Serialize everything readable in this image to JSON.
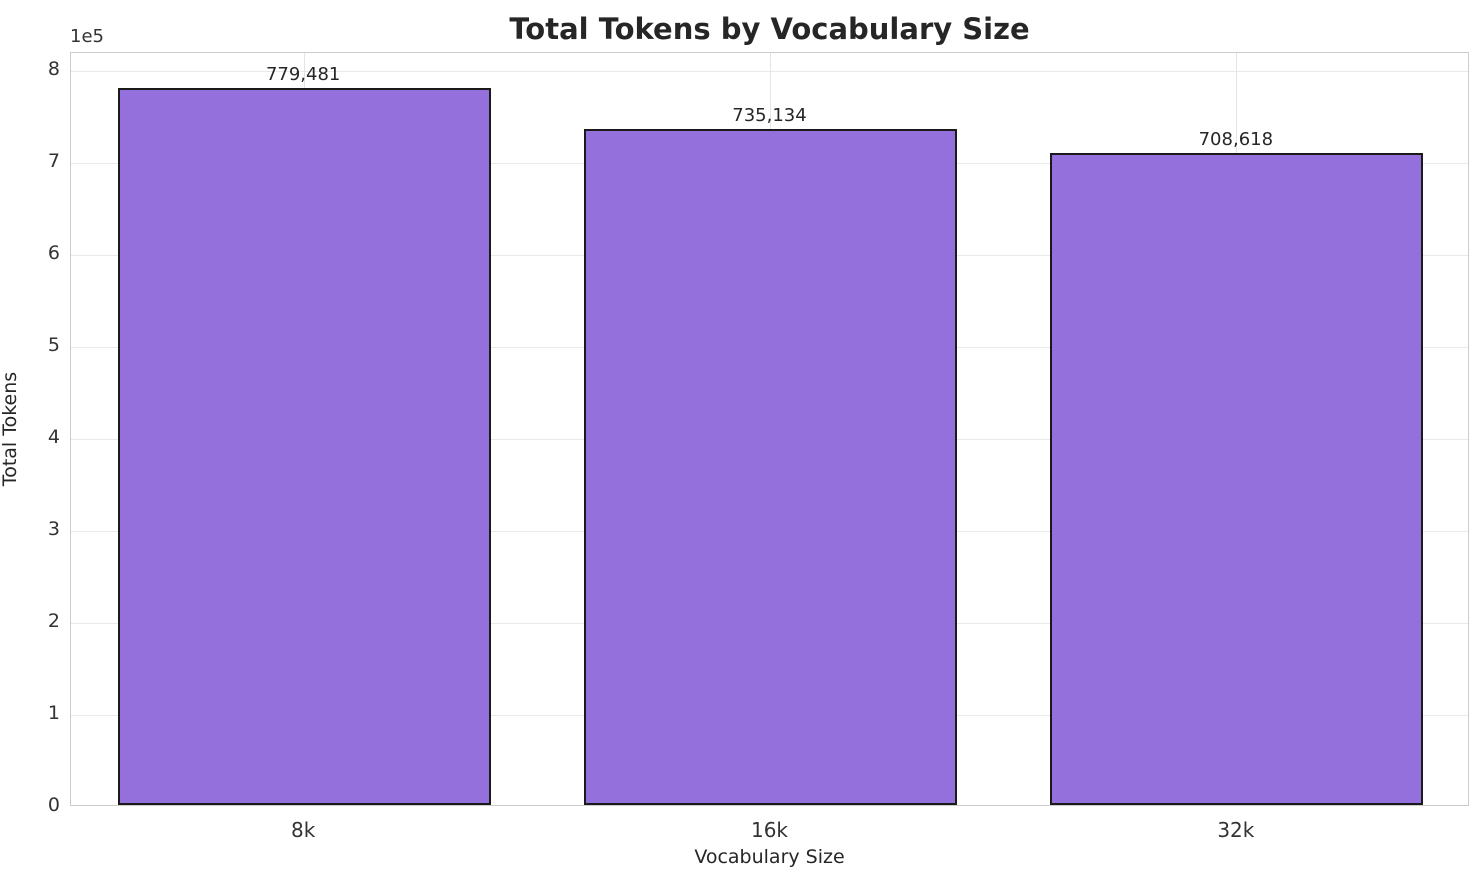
{
  "chart_data": {
    "type": "bar",
    "title": "Total Tokens by Vocabulary Size",
    "xlabel": "Vocabulary Size",
    "ylabel": "Total Tokens",
    "categories": [
      "8k",
      "16k",
      "32k"
    ],
    "values": [
      779481,
      735134,
      708618
    ],
    "value_labels": [
      "779,481",
      "735,134",
      "708,618"
    ],
    "offset_text": "1e5",
    "y_ticks": [
      0,
      1,
      2,
      3,
      4,
      5,
      6,
      7,
      8
    ],
    "y_tick_scale": 100000,
    "ylim": [
      0,
      820000
    ],
    "grid": "horizontal and vertical light gridlines",
    "legend": "none",
    "bar_width_fraction": 0.8,
    "colors": {
      "bar_fill": "#9370DB",
      "bar_edge": "#1a1a1a",
      "grid": "#e8e8e8",
      "spine": "#cccccc",
      "text": "#262626",
      "background": "#ffffff"
    }
  }
}
